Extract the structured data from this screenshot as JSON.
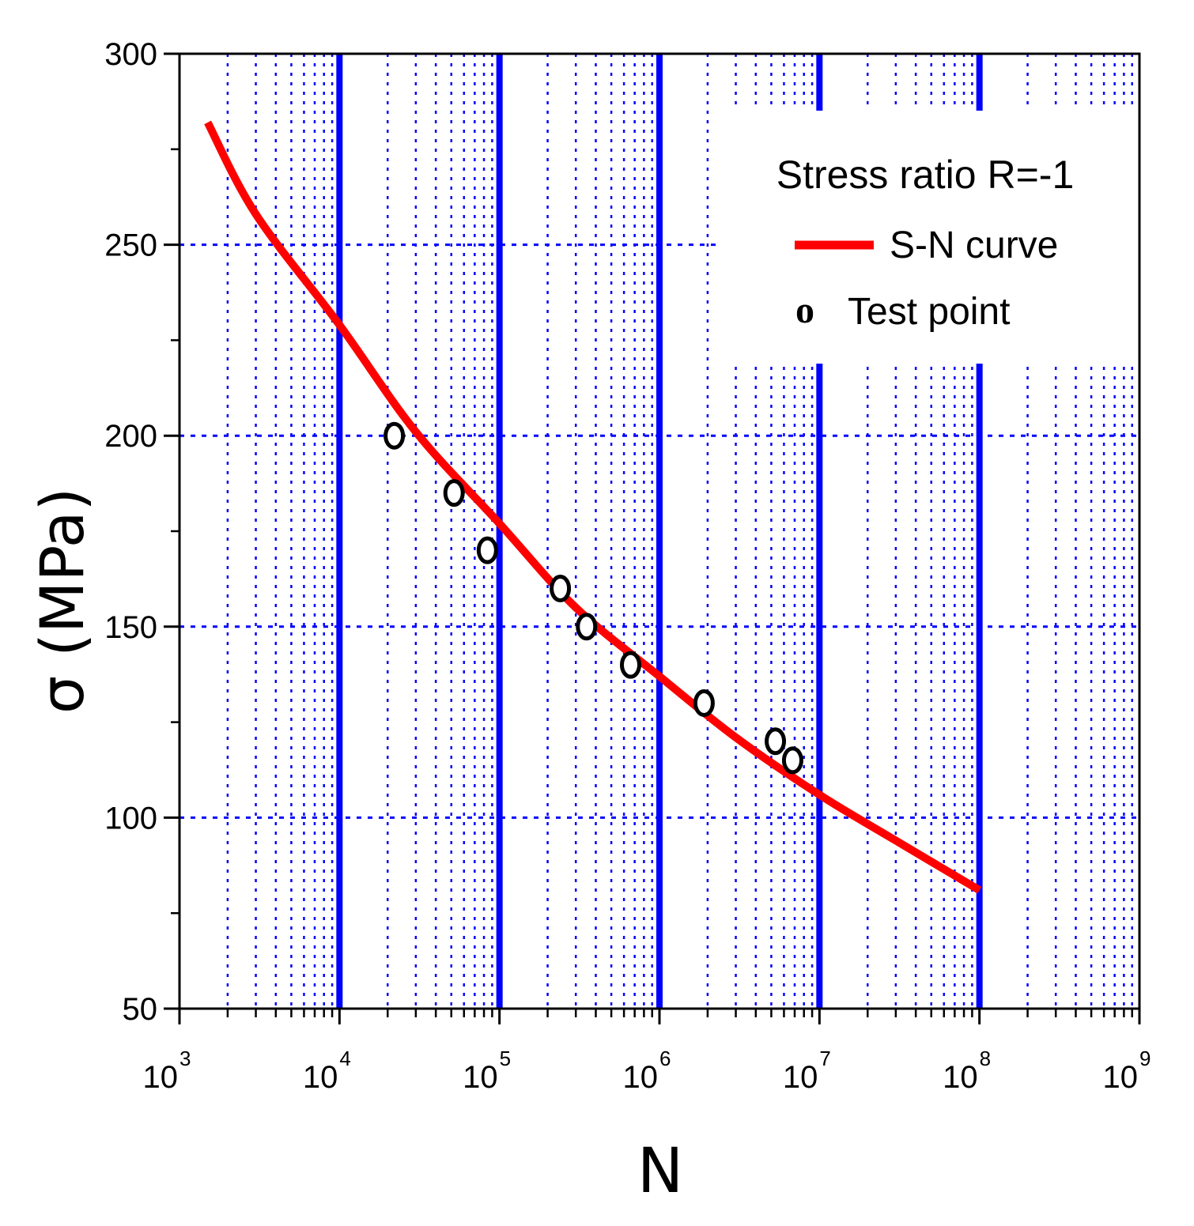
{
  "chart_data": {
    "type": "scatter",
    "title": "",
    "xlabel": "N",
    "ylabel": "σ (MPa)",
    "xscale": "log",
    "xlim": [
      1000,
      1000000000
    ],
    "ylim": [
      50,
      300
    ],
    "x_ticks": [
      {
        "base": "10",
        "exp": "3",
        "value": 1000
      },
      {
        "base": "10",
        "exp": "4",
        "value": 10000
      },
      {
        "base": "10",
        "exp": "5",
        "value": 100000
      },
      {
        "base": "10",
        "exp": "6",
        "value": 1000000
      },
      {
        "base": "10",
        "exp": "7",
        "value": 10000000
      },
      {
        "base": "10",
        "exp": "8",
        "value": 100000000
      },
      {
        "base": "10",
        "exp": "9",
        "value": 1000000000
      }
    ],
    "y_ticks": [
      {
        "label": "50",
        "value": 50
      },
      {
        "label": "100",
        "value": 100
      },
      {
        "label": "150",
        "value": 150
      },
      {
        "label": "200",
        "value": 200
      },
      {
        "label": "250",
        "value": 250
      },
      {
        "label": "300",
        "value": 300
      }
    ],
    "grid": true,
    "legend": {
      "title": "Stress ratio R=-1",
      "placement": "top-right",
      "entries": [
        {
          "label": "S-N curve",
          "kind": "line"
        },
        {
          "label": "Test point",
          "kind": "marker",
          "marker": "o"
        }
      ]
    },
    "series": [
      {
        "name": "S-N curve",
        "kind": "line",
        "color": "#ff0000",
        "x": [
          1500,
          3000,
          10000,
          30000,
          100000,
          300000,
          1000000,
          3000000,
          10000000,
          30000000,
          100000000
        ],
        "y": [
          282,
          258,
          229,
          201,
          177,
          155,
          137,
          121,
          106,
          94,
          81
        ]
      },
      {
        "name": "Test point",
        "kind": "scatter",
        "color": "#000000",
        "x": [
          22000,
          52000,
          84000,
          240000,
          350000,
          660000,
          1900000,
          5300000,
          6800000
        ],
        "y": [
          200,
          185,
          170,
          160,
          150,
          140,
          130,
          120,
          115
        ]
      }
    ],
    "colors": {
      "major_grid": "#0000ff",
      "minor_grid": "#0000ff",
      "curve": "#ff0000",
      "points": "#000000",
      "axes": "#000000"
    }
  }
}
